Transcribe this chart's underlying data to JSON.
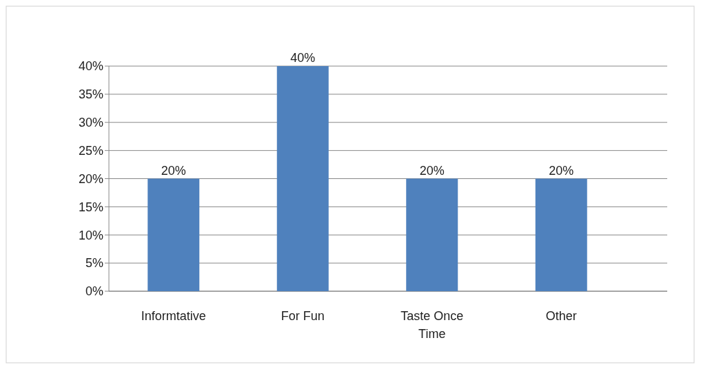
{
  "chart_data": {
    "type": "bar",
    "categories": [
      "Informtative",
      "For Fun",
      "Taste Once Time",
      "Other"
    ],
    "values": [
      20,
      40,
      20,
      20
    ],
    "color": "#4f81bd",
    "value_labels": [
      "20%",
      "40%",
      "20%",
      "20%"
    ],
    "ylim": [
      0,
      40
    ],
    "yticks": [
      {
        "value": 0,
        "label": "0%"
      },
      {
        "value": 5,
        "label": "5%"
      },
      {
        "value": 10,
        "label": "10%"
      },
      {
        "value": 15,
        "label": "15%"
      },
      {
        "value": 20,
        "label": "20%"
      },
      {
        "value": 25,
        "label": "25%"
      },
      {
        "value": 30,
        "label": "30%"
      },
      {
        "value": 35,
        "label": "35%"
      },
      {
        "value": 40,
        "label": "40%"
      }
    ],
    "grid": "y"
  }
}
